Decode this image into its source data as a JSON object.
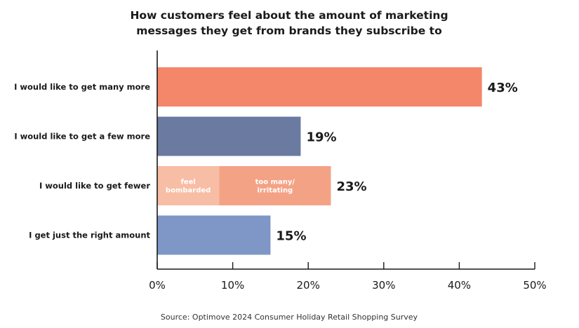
{
  "chart_data": {
    "type": "bar",
    "orientation": "horizontal",
    "title_lines": [
      "How customers feel about the amount of marketing",
      "messages they get from brands they subscribe to"
    ],
    "categories": [
      "I would like to get many more",
      "I would like to get a few more",
      "I would like to get fewer",
      "I get just the right amount"
    ],
    "values": [
      43,
      19,
      23,
      15
    ],
    "value_labels": [
      "43%",
      "19%",
      "23%",
      "15%"
    ],
    "colors": [
      "#f4866a",
      "#6a7aa0",
      "#f4a285",
      "#7f97c6"
    ],
    "stacked_segments": {
      "category_index": 2,
      "segments": [
        {
          "label_lines": [
            "feel",
            "bombarded"
          ],
          "value": 8.2,
          "color": "#f8bda5"
        },
        {
          "label_lines": [
            "too many/",
            "irritating"
          ],
          "value": 14.8,
          "color": "#f4a285"
        }
      ]
    },
    "x_ticks": [
      0,
      10,
      20,
      30,
      40,
      50
    ],
    "x_tick_labels": [
      "0%",
      "10%",
      "20%",
      "30%",
      "40%",
      "50%"
    ],
    "xlim": [
      0,
      50
    ],
    "xlabel": "",
    "ylabel": "",
    "grid": false,
    "source": "Source: Optimove 2024 Consumer Holiday Retail Shopping Survey"
  }
}
